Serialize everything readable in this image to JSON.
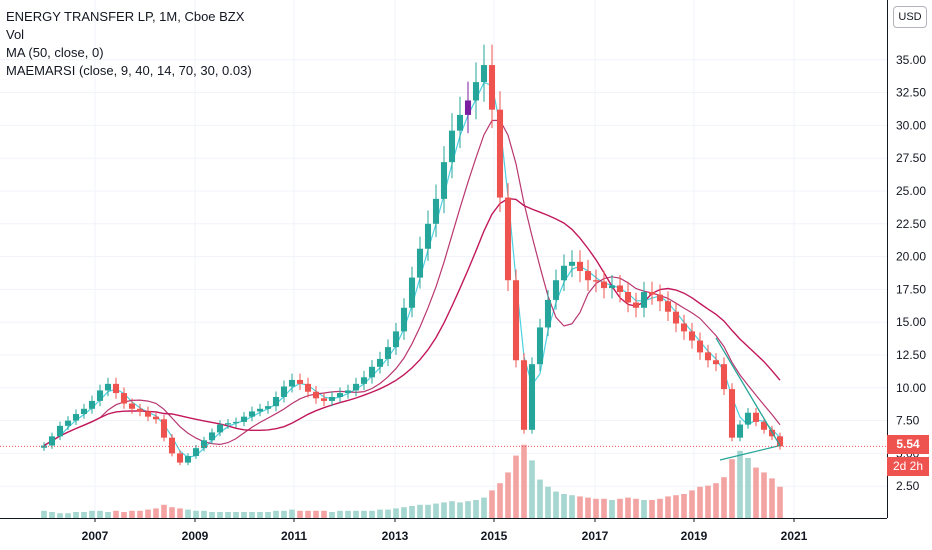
{
  "legend": {
    "symbol": "ENERGY TRANSFER LP, 1M, Cboe BZX",
    "volume": "Vol",
    "ma": "MA (50, close, 0)",
    "maemarsi": "MAEMARSI (close, 9, 40, 14, 70, 30, 0.03)"
  },
  "currency_button": "USD",
  "last_price_label": "5.54",
  "countdown_label": "2d 2h",
  "colors": {
    "up": "#26a69a",
    "down": "#ef5350",
    "up_highlight": "#7b1fa2",
    "ma50": "#c2185b",
    "ma_fast": "#4dd0e1",
    "ma_slow": "#ad1457",
    "trendline": "#26a69a",
    "volume_up": "#a5d6d0",
    "volume_down": "#f4a3a3"
  },
  "chart_data": {
    "type": "candlestick",
    "y_axis": {
      "ticks": [
        "35.00",
        "32.50",
        "30.00",
        "27.50",
        "25.00",
        "22.50",
        "20.00",
        "17.50",
        "15.00",
        "12.50",
        "10.00",
        "7.50",
        "5.00",
        "2.50"
      ],
      "range": [
        0,
        37.5
      ]
    },
    "x_axis": {
      "ticks": [
        "2007",
        "2009",
        "2011",
        "2013",
        "2015",
        "2017",
        "2019",
        "2021"
      ]
    },
    "last_price": 5.54,
    "closes": [
      5.6,
      6.3,
      7.1,
      7.5,
      8.0,
      8.4,
      9.0,
      9.8,
      10.3,
      9.6,
      8.8,
      8.4,
      8.2,
      7.8,
      7.6,
      6.2,
      5.0,
      4.3,
      4.8,
      5.4,
      6.0,
      6.6,
      7.2,
      7.3,
      7.4,
      7.8,
      8.2,
      8.4,
      8.6,
      9.3,
      10.1,
      10.6,
      10.3,
      9.7,
      9.2,
      9.0,
      9.3,
      9.6,
      9.8,
      10.3,
      10.8,
      11.6,
      12.2,
      13.1,
      14.3,
      16.1,
      18.4,
      20.6,
      22.5,
      24.4,
      27.2,
      29.6,
      30.8,
      31.9,
      33.3,
      34.6,
      31.2,
      24.5,
      18.2,
      12.1,
      6.8,
      11.8,
      14.6,
      16.7,
      18.2,
      19.3,
      19.6,
      18.9,
      18.2,
      18.1,
      17.6,
      17.8,
      17.3,
      16.5,
      16.1,
      17.3,
      17.1,
      16.6,
      15.8,
      14.9,
      14.3,
      13.6,
      12.7,
      12.1,
      11.8,
      9.9,
      6.2,
      7.2,
      8.1,
      7.4,
      6.8,
      6.3,
      5.54
    ],
    "volumes": [
      0.6,
      0.5,
      0.4,
      0.4,
      0.5,
      0.5,
      0.6,
      0.6,
      0.5,
      0.6,
      0.5,
      0.6,
      0.6,
      0.7,
      0.8,
      1.1,
      0.9,
      0.8,
      0.7,
      0.6,
      0.6,
      0.5,
      0.5,
      0.5,
      0.5,
      0.5,
      0.5,
      0.5,
      0.5,
      0.6,
      0.6,
      0.7,
      0.6,
      0.6,
      0.6,
      0.6,
      0.5,
      0.6,
      0.6,
      0.6,
      0.6,
      0.6,
      0.7,
      0.7,
      0.8,
      0.9,
      1.0,
      1.1,
      1.1,
      1.2,
      1.3,
      1.4,
      1.3,
      1.4,
      1.5,
      1.7,
      2.3,
      2.9,
      3.8,
      5.2,
      6.1,
      4.8,
      3.2,
      2.6,
      2.2,
      2.0,
      1.9,
      1.8,
      1.7,
      1.6,
      1.6,
      1.5,
      1.6,
      1.7,
      1.6,
      1.5,
      1.5,
      1.6,
      1.8,
      1.9,
      2.0,
      2.3,
      2.6,
      2.7,
      2.9,
      3.4,
      4.9,
      5.6,
      5.0,
      4.2,
      3.8,
      3.3,
      2.6
    ],
    "indicators": [
      "MA (50, close, 0)",
      "MAEMARSI (close, 9, 40, 14, 70, 30, 0.03)"
    ]
  }
}
